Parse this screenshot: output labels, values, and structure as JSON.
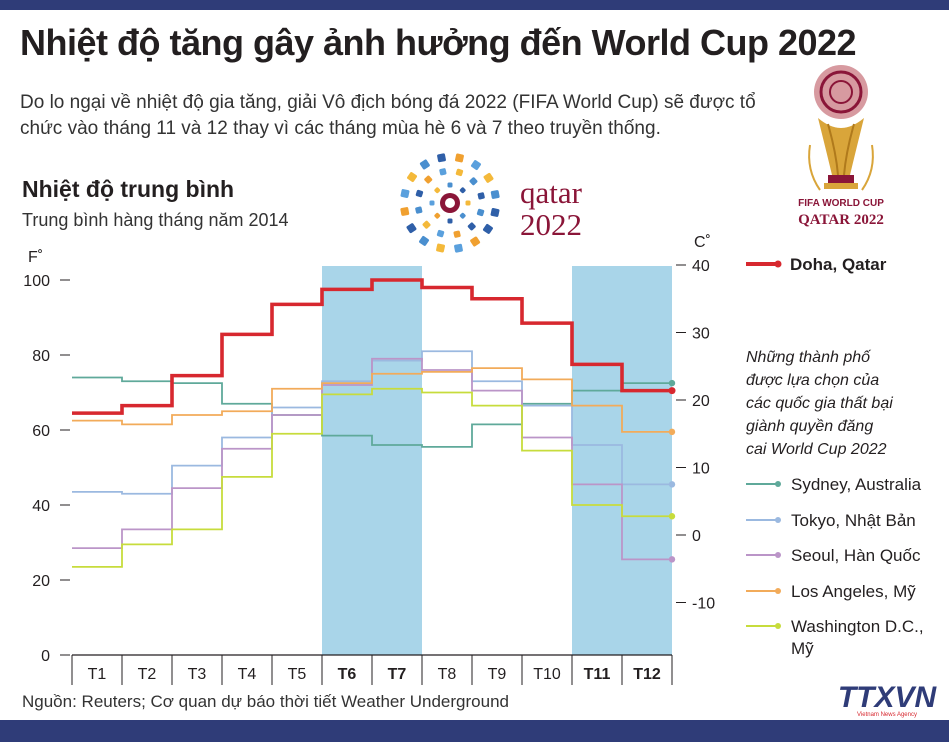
{
  "header": {
    "title": "Nhiệt độ tăng gây ảnh hưởng đến World Cup 2022",
    "intro": "Do lo ngại về nhiệt độ gia tăng, giải Vô địch bóng đá 2022 (FIFA World Cup) sẽ được tổ chức vào tháng 11 và 12 thay vì các tháng mùa hè 6 và 7 theo truyền thống."
  },
  "chart_data": {
    "type": "line",
    "title": "Nhiệt độ trung bình",
    "subtitle": "Trung bình hàng tháng năm 2014",
    "left_axis_label": "F˚",
    "right_axis_label": "C˚",
    "ylim_f": [
      0,
      100
    ],
    "ylim_c": [
      -17.78,
      37.78
    ],
    "left_ticks": [
      0,
      20,
      40,
      60,
      80,
      100
    ],
    "right_ticks": [
      40,
      30,
      20,
      10,
      0,
      -10
    ],
    "categories": [
      "T1",
      "T2",
      "T3",
      "T4",
      "T5",
      "T6",
      "T7",
      "T8",
      "T9",
      "T10",
      "T11",
      "T12"
    ],
    "bold_categories": [
      "T6",
      "T7",
      "T11",
      "T12"
    ],
    "highlight_months": [
      [
        "T6",
        "T7"
      ],
      [
        "T11",
        "T12"
      ]
    ],
    "highlight_color": "#a9d5e9",
    "step": true,
    "main_series": {
      "name": "Doha, Qatar",
      "color": "#d7282f",
      "values": [
        64.5,
        66.5,
        74.5,
        85.5,
        93.5,
        97.5,
        100,
        98,
        95,
        88.5,
        77.5,
        70.5
      ]
    },
    "notes": "Những thành phố được lựa chọn của các quốc gia thất bại giành quyền đăng cai World Cup 2022",
    "series": [
      {
        "name": "Sydney, Australia",
        "color": "#5fa99a",
        "values": [
          74,
          73,
          72.5,
          67,
          64,
          58.5,
          56,
          55.5,
          61.5,
          67,
          70.5,
          72.5
        ]
      },
      {
        "name": "Tokyo, Nhật Bản",
        "color": "#9bb9e0",
        "values": [
          43.5,
          43,
          50.5,
          58,
          66,
          73,
          78.5,
          81,
          73,
          66.5,
          56,
          45.5
        ]
      },
      {
        "name": "Seoul, Hàn Quốc",
        "color": "#bb95c8",
        "values": [
          28.5,
          33.5,
          44.5,
          55,
          64,
          72,
          79,
          76,
          70.5,
          58,
          45.5,
          25.5
        ]
      },
      {
        "name": "Los Angeles, Mỹ",
        "color": "#f2ab5a",
        "values": [
          62.5,
          61.5,
          64,
          65,
          71,
          72.5,
          75,
          75.5,
          76.5,
          73.5,
          66.5,
          59.5
        ]
      },
      {
        "name": "Washington D.C., Mỹ",
        "color": "#c7dc3c",
        "values": [
          23.5,
          29.5,
          33.5,
          47.5,
          59,
          69.5,
          71,
          70,
          66.5,
          54.5,
          40,
          37
        ]
      }
    ]
  },
  "logos": {
    "qatar_word": "qatar",
    "qatar_year": "2022",
    "fifa_line1": "FIFA WORLD CUP",
    "fifa_line2": "QATAR 2022",
    "agency": "TTXVN",
    "agency_sub": "Vietnam News Agency"
  },
  "footer": {
    "source": "Nguồn: Reuters; Cơ quan dự báo thời tiết Weather Underground"
  },
  "colors": {
    "header_bar": "#2f3c78",
    "maroon": "#8a1538",
    "gold": "#d9a53a"
  }
}
